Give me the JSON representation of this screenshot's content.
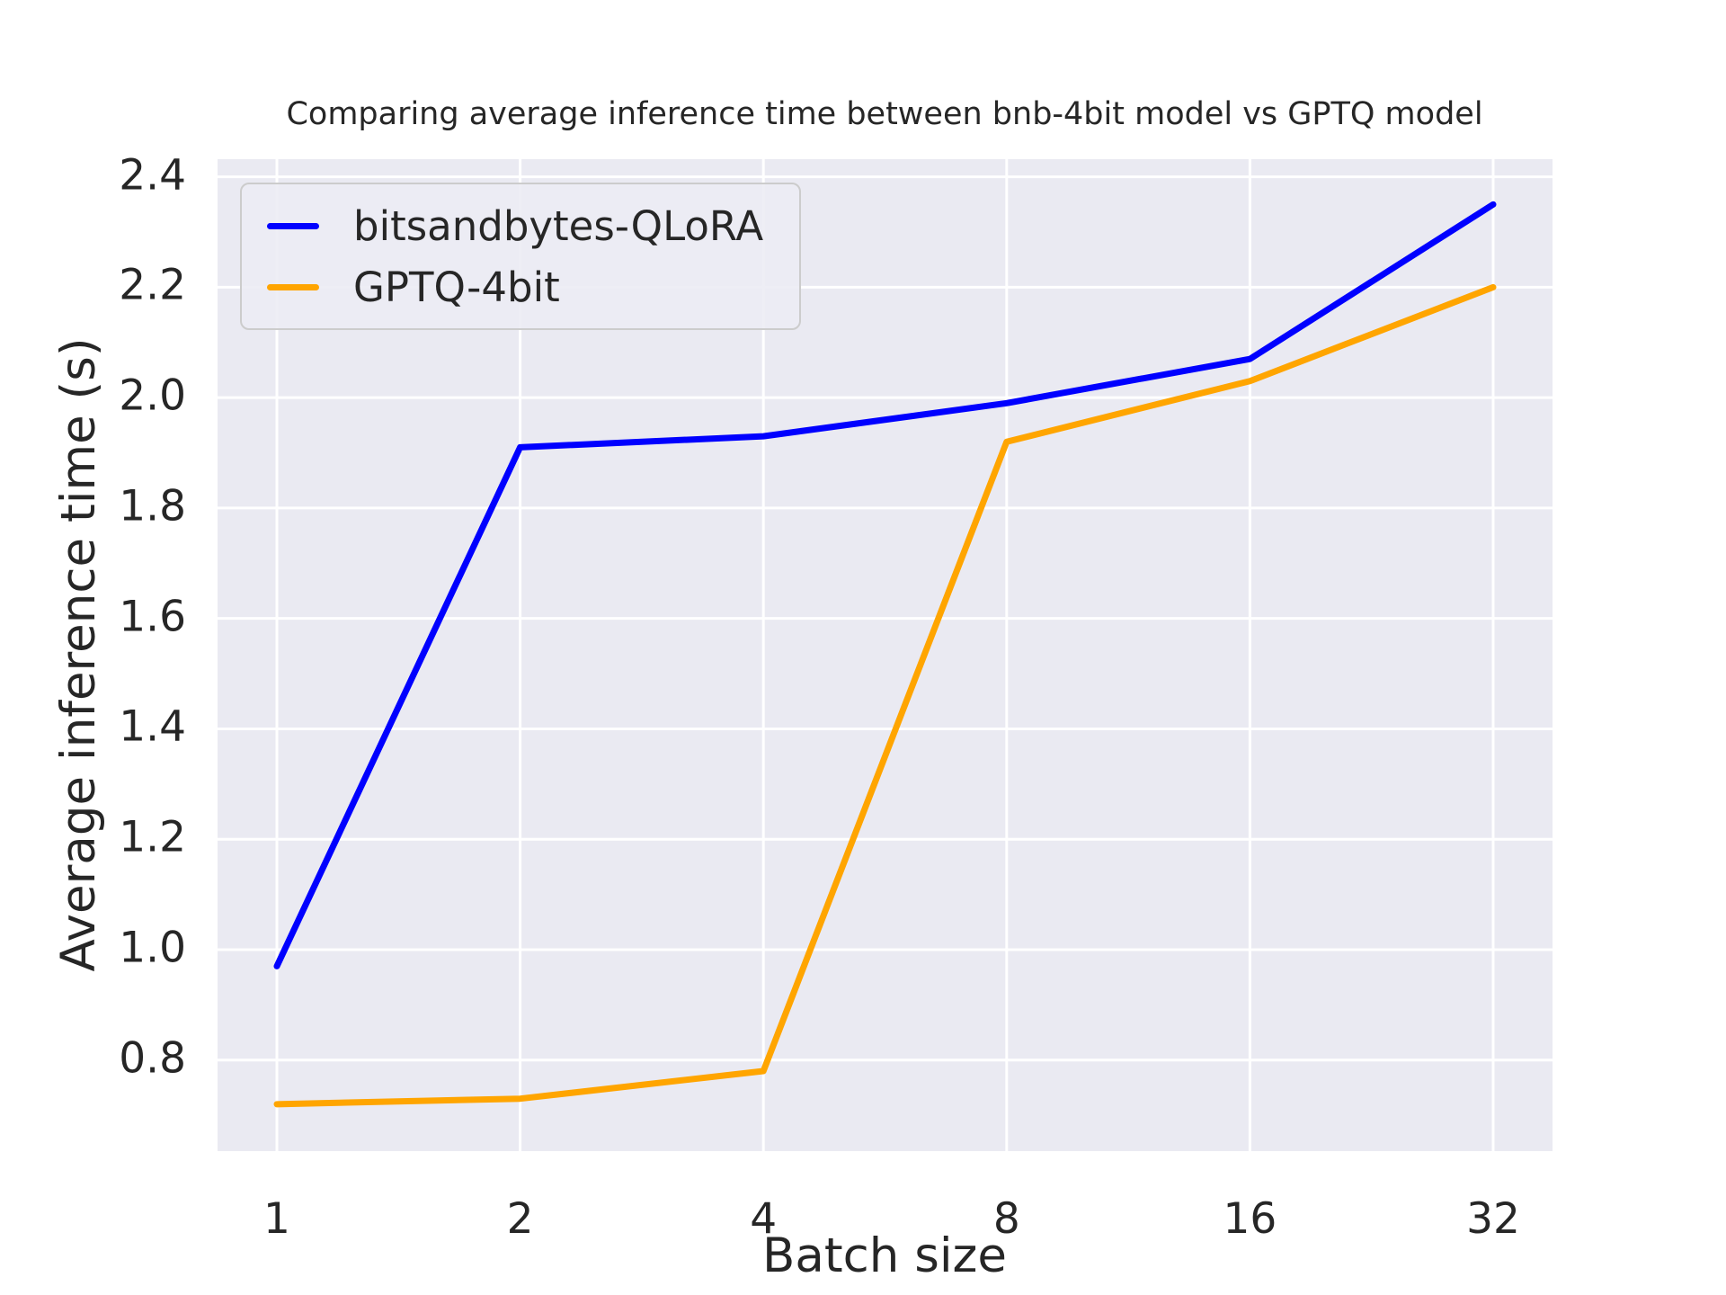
{
  "chart_data": {
    "type": "line",
    "title": "Comparing average inference time between bnb-4bit model vs GPTQ model",
    "xlabel": "Batch size",
    "ylabel": "Average inference time (s)",
    "categories": [
      "1",
      "2",
      "4",
      "8",
      "16",
      "32"
    ],
    "series": [
      {
        "name": "bitsandbytes-QLoRA",
        "color": "#0000FF",
        "values": [
          0.97,
          1.91,
          1.93,
          1.99,
          2.07,
          2.35
        ]
      },
      {
        "name": "GPTQ-4bit",
        "color": "#FFA500",
        "values": [
          0.72,
          0.73,
          0.78,
          1.92,
          2.03,
          2.2
        ]
      }
    ],
    "ylim": [
      0.635,
      2.432
    ],
    "yticks": [
      0.8,
      1.0,
      1.2,
      1.4,
      1.6,
      1.8,
      2.0,
      2.2,
      2.4
    ],
    "grid": true,
    "legend_position": "upper left",
    "plot_bg": "#EAEAF2",
    "grid_color": "#FFFFFF",
    "text_color": "#262626",
    "line_width": 7
  }
}
